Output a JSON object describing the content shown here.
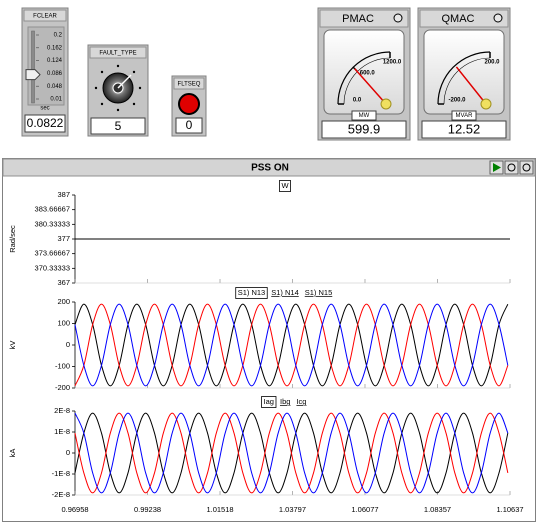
{
  "widgets": {
    "fclear": {
      "title": "FCLEAR",
      "lim": [
        0.01,
        0.2
      ],
      "ticks": [
        0.2,
        0.162,
        0.124,
        0.086,
        0.048,
        0.01
      ],
      "unit": "sec",
      "value": 0.0822
    },
    "fault_type": {
      "title": "FAULT_TYPE",
      "value": 5
    },
    "fltseq": {
      "title": "FLTSEQ",
      "value": 0
    },
    "pmac": {
      "title": "PMAC",
      "lim": [
        0,
        1200
      ],
      "ticks": [
        {
          "value": 0,
          "label": "0.0"
        },
        {
          "value": 600,
          "label": "600.0"
        },
        {
          "value": 1200,
          "label": "1200.0"
        }
      ],
      "unit": "MW",
      "value": 599.9
    },
    "qmac": {
      "title": "QMAC",
      "lim": [
        -200,
        200
      ],
      "ticks": [
        {
          "value": -200,
          "label": "-200.0"
        },
        {
          "value": 200,
          "label": "200.0"
        }
      ],
      "unit": "MVAR",
      "value": 12.52
    }
  },
  "plot": {
    "title": "PSS ON",
    "xlim": [
      0.96958,
      1.10637
    ],
    "xticks": [
      0.96958,
      0.99238,
      1.01518,
      1.03797,
      1.06077,
      1.08357,
      1.10637
    ]
  },
  "chart_data": [
    {
      "type": "line",
      "ylabel": "Rad/sec",
      "ylim": [
        367,
        387
      ],
      "yticks": [
        387,
        383.66667,
        380.33333,
        377,
        373.66667,
        370.33333,
        367
      ],
      "x": [
        0.96958,
        1.10637
      ],
      "series": [
        {
          "name": "W",
          "color": "#000000",
          "values": [
            377,
            377
          ]
        }
      ]
    },
    {
      "type": "line",
      "ylabel": "kV",
      "ylim": [
        -200,
        200
      ],
      "yticks": [
        200,
        100,
        0,
        -100,
        -200
      ],
      "x": [
        0.96958,
        0.97236,
        0.97514,
        0.97791,
        0.98069,
        0.98347,
        0.98625,
        0.98902,
        0.9918,
        0.99458,
        0.99736,
        1.00014,
        1.00291,
        1.00569,
        1.00847,
        1.01125,
        1.01402,
        1.0168,
        1.01958,
        1.02236,
        1.02514,
        1.02791,
        1.03069,
        1.03347,
        1.03625,
        1.03902,
        1.0418,
        1.04458,
        1.04736,
        1.05014,
        1.05291,
        1.05569,
        1.05847,
        1.06125,
        1.06402,
        1.0668,
        1.06958,
        1.07236,
        1.07514,
        1.07791,
        1.08069,
        1.08347,
        1.08625,
        1.08902,
        1.0918,
        1.09458,
        1.09736,
        1.10014,
        1.10291,
        1.10569
      ],
      "series": [
        {
          "name": "S1) N13",
          "color": "#000000",
          "values": [
            95,
            190,
            95,
            -95,
            -190,
            -95,
            95,
            190,
            95,
            -95,
            -190,
            -95,
            95,
            190,
            95,
            -95,
            -190,
            -95,
            95,
            190,
            95,
            -95,
            -190,
            -95,
            95,
            190,
            95,
            -95,
            -190,
            -95,
            95,
            190,
            95,
            -95,
            -190,
            -95,
            95,
            190,
            95,
            -95,
            -190,
            -95,
            95,
            190,
            95,
            -95,
            -190,
            -95,
            95,
            190
          ]
        },
        {
          "name": "S1) N14",
          "color": "#ff0000",
          "values": [
            -190,
            -95,
            95,
            190,
            95,
            -95,
            -190,
            -95,
            95,
            190,
            95,
            -95,
            -190,
            -95,
            95,
            190,
            95,
            -95,
            -190,
            -95,
            95,
            190,
            95,
            -95,
            -190,
            -95,
            95,
            190,
            95,
            -95,
            -190,
            -95,
            95,
            190,
            95,
            -95,
            -190,
            -95,
            95,
            190,
            95,
            -95,
            -190,
            -95,
            95,
            190,
            95,
            -95,
            -190,
            -95
          ]
        },
        {
          "name": "S1) N15",
          "color": "#0000ff",
          "values": [
            95,
            -95,
            -190,
            -95,
            95,
            190,
            95,
            -95,
            -190,
            -95,
            95,
            190,
            95,
            -95,
            -190,
            -95,
            95,
            190,
            95,
            -95,
            -190,
            -95,
            95,
            190,
            95,
            -95,
            -190,
            -95,
            95,
            190,
            95,
            -95,
            -190,
            -95,
            95,
            190,
            95,
            -95,
            -190,
            -95,
            95,
            190,
            95,
            -95,
            -190,
            -95,
            95,
            190,
            95,
            -95
          ]
        }
      ]
    },
    {
      "type": "line",
      "ylabel": "kA",
      "ylim": [
        -2e-08,
        2e-08
      ],
      "yticks": [
        {
          "value": 2e-08,
          "label": "2E-8"
        },
        {
          "value": 1e-08,
          "label": "1E-8"
        },
        0,
        {
          "value": -1e-08,
          "label": "-1E-8"
        },
        {
          "value": -2e-08,
          "label": "-2E-8"
        }
      ],
      "x": [
        0.96958,
        0.97236,
        0.97514,
        0.97791,
        0.98069,
        0.98347,
        0.98625,
        0.98902,
        0.9918,
        0.99458,
        0.99736,
        1.00014,
        1.00291,
        1.00569,
        1.00847,
        1.01125,
        1.01402,
        1.0168,
        1.01958,
        1.02236,
        1.02514,
        1.02791,
        1.03069,
        1.03347,
        1.03625,
        1.03902,
        1.0418,
        1.04458,
        1.04736,
        1.05014,
        1.05291,
        1.05569,
        1.05847,
        1.06125,
        1.06402,
        1.0668,
        1.06958,
        1.07236,
        1.07514,
        1.07791,
        1.08069,
        1.08347,
        1.08625,
        1.08902,
        1.0918,
        1.09458,
        1.09736,
        1.10014,
        1.10291,
        1.10569
      ],
      "series": [
        {
          "name": "Iag",
          "color": "#000000",
          "values": [
            -9.5e-09,
            9.5e-09,
            1.9e-08,
            9.5e-09,
            -9.5e-09,
            -1.9e-08,
            -9.5e-09,
            9.5e-09,
            1.9e-08,
            9.5e-09,
            -9.5e-09,
            -1.9e-08,
            -9.5e-09,
            9.5e-09,
            1.9e-08,
            9.5e-09,
            -9.5e-09,
            -1.9e-08,
            -9.5e-09,
            9.5e-09,
            1.9e-08,
            9.5e-09,
            -9.5e-09,
            -1.9e-08,
            -9.5e-09,
            9.5e-09,
            1.9e-08,
            9.5e-09,
            -9.5e-09,
            -1.9e-08,
            -9.5e-09,
            9.5e-09,
            1.9e-08,
            9.5e-09,
            -9.5e-09,
            -1.9e-08,
            -9.5e-09,
            9.5e-09,
            1.9e-08,
            9.5e-09,
            -9.5e-09,
            -1.9e-08,
            -9.5e-09,
            9.5e-09,
            1.9e-08,
            9.5e-09,
            -9.5e-09,
            -1.9e-08,
            -9.5e-09,
            9.5e-09
          ]
        },
        {
          "name": "Ibg",
          "color": "#ff0000",
          "values": [
            9.5e-09,
            -9.5e-09,
            -1.9e-08,
            -9.5e-09,
            9.5e-09,
            1.9e-08,
            9.5e-09,
            -9.5e-09,
            -1.9e-08,
            -9.5e-09,
            9.5e-09,
            1.9e-08,
            9.5e-09,
            -9.5e-09,
            -1.9e-08,
            -9.5e-09,
            9.5e-09,
            1.9e-08,
            9.5e-09,
            -9.5e-09,
            -1.9e-08,
            -9.5e-09,
            9.5e-09,
            1.9e-08,
            9.5e-09,
            -9.5e-09,
            -1.9e-08,
            -9.5e-09,
            9.5e-09,
            1.9e-08,
            9.5e-09,
            -9.5e-09,
            -1.9e-08,
            -9.5e-09,
            9.5e-09,
            1.9e-08,
            9.5e-09,
            -9.5e-09,
            -1.9e-08,
            -9.5e-09,
            9.5e-09,
            1.9e-08,
            9.5e-09,
            -9.5e-09,
            -1.9e-08,
            -9.5e-09,
            9.5e-09,
            1.9e-08,
            9.5e-09,
            -9.5e-09
          ]
        },
        {
          "name": "Icg",
          "color": "#0000ff",
          "values": [
            1.9e-08,
            9.5e-09,
            -9.5e-09,
            -1.9e-08,
            -9.5e-09,
            9.5e-09,
            1.9e-08,
            9.5e-09,
            -9.5e-09,
            -1.9e-08,
            -9.5e-09,
            9.5e-09,
            1.9e-08,
            9.5e-09,
            -9.5e-09,
            -1.9e-08,
            -9.5e-09,
            9.5e-09,
            1.9e-08,
            9.5e-09,
            -9.5e-09,
            -1.9e-08,
            -9.5e-09,
            9.5e-09,
            1.9e-08,
            9.5e-09,
            -9.5e-09,
            -1.9e-08,
            -9.5e-09,
            9.5e-09,
            1.9e-08,
            9.5e-09,
            -9.5e-09,
            -1.9e-08,
            -9.5e-09,
            9.5e-09,
            1.9e-08,
            9.5e-09,
            -9.5e-09,
            -1.9e-08,
            -9.5e-09,
            9.5e-09,
            1.9e-08,
            9.5e-09,
            -9.5e-09,
            -1.9e-08,
            -9.5e-09,
            9.5e-09,
            1.9e-08,
            9.5e-09
          ]
        }
      ]
    }
  ]
}
